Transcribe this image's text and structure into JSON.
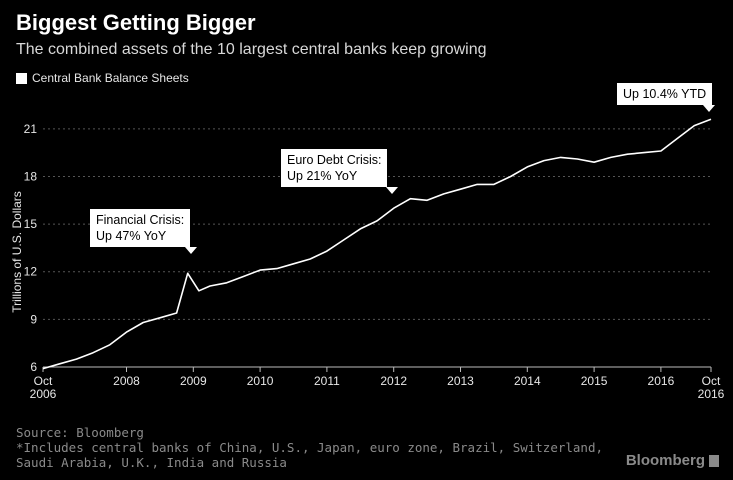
{
  "header": {
    "title": "Biggest Getting Bigger",
    "subtitle": "The combined assets of the 10 largest central banks keep growing"
  },
  "legend": {
    "label": "Central Bank Balance Sheets",
    "color": "#ffffff"
  },
  "annotations": {
    "financial_crisis": [
      "Financial Crisis:",
      "Up 47% YoY"
    ],
    "euro_debt_crisis": [
      "Euro Debt Crisis:",
      "Up 21% YoY"
    ],
    "ytd": [
      "Up 10.4% YTD"
    ]
  },
  "footer": {
    "source": "Source: Bloomberg",
    "note": "*Includes central banks of China, U.S., Japan, euro zone, Brazil, Switzerland, Saudi Arabia, U.K., India and Russia",
    "brand": "Bloomberg"
  },
  "chart_data": {
    "type": "line",
    "title": "Biggest Getting Bigger",
    "subtitle": "The combined assets of the 10 largest central banks keep growing",
    "xlabel": "",
    "ylabel": "Trillions of U.S. Dollars",
    "xlim": [
      "2006-10",
      "2016-10"
    ],
    "ylim": [
      6,
      22.5
    ],
    "grid": true,
    "legend_position": "top-left",
    "x_ticks": [
      {
        "date": "2006-10",
        "label": "Oct",
        "sublabel": "2006"
      },
      {
        "date": "2008-01",
        "label": "2008"
      },
      {
        "date": "2009-01",
        "label": "2009"
      },
      {
        "date": "2010-01",
        "label": "2010"
      },
      {
        "date": "2011-01",
        "label": "2011"
      },
      {
        "date": "2012-01",
        "label": "2012"
      },
      {
        "date": "2013-01",
        "label": "2013"
      },
      {
        "date": "2014-01",
        "label": "2014"
      },
      {
        "date": "2015-01",
        "label": "2015"
      },
      {
        "date": "2016-01",
        "label": "2016"
      },
      {
        "date": "2016-10",
        "label": "Oct",
        "sublabel": "2016"
      }
    ],
    "y_ticks": [
      6,
      9,
      12,
      15,
      18,
      21
    ],
    "series": [
      {
        "name": "Central Bank Balance Sheets",
        "color": "#ffffff",
        "x": [
          "2006-10",
          "2007-01",
          "2007-04",
          "2007-07",
          "2007-10",
          "2008-01",
          "2008-04",
          "2008-07",
          "2008-10",
          "2008-12",
          "2009-02",
          "2009-04",
          "2009-07",
          "2009-10",
          "2010-01",
          "2010-04",
          "2010-07",
          "2010-10",
          "2011-01",
          "2011-04",
          "2011-07",
          "2011-10",
          "2012-01",
          "2012-04",
          "2012-07",
          "2012-10",
          "2013-01",
          "2013-04",
          "2013-07",
          "2013-10",
          "2014-01",
          "2014-04",
          "2014-07",
          "2014-10",
          "2015-01",
          "2015-04",
          "2015-07",
          "2015-10",
          "2016-01",
          "2016-04",
          "2016-07",
          "2016-10"
        ],
        "values": [
          5.9,
          6.2,
          6.5,
          6.9,
          7.4,
          8.2,
          8.8,
          9.1,
          9.4,
          11.9,
          10.8,
          11.1,
          11.3,
          11.7,
          12.1,
          12.2,
          12.5,
          12.8,
          13.3,
          14.0,
          14.7,
          15.2,
          16.0,
          16.6,
          16.5,
          16.9,
          17.2,
          17.5,
          17.5,
          18.0,
          18.6,
          19.0,
          19.2,
          19.1,
          18.9,
          19.2,
          19.4,
          19.5,
          19.6,
          20.4,
          21.2,
          21.6
        ]
      }
    ]
  }
}
